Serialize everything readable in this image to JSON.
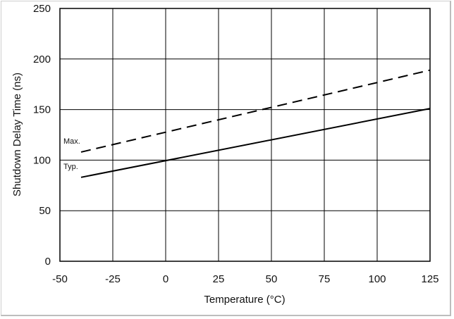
{
  "chart_data": {
    "type": "line",
    "title": "",
    "xlabel": "Temperature (°C)",
    "ylabel": "Shutdown Delay Time (ns)",
    "xlim": [
      -50,
      125
    ],
    "ylim": [
      0,
      250
    ],
    "xticks": [
      -50,
      -25,
      0,
      25,
      50,
      75,
      100,
      125
    ],
    "yticks": [
      0,
      50,
      100,
      150,
      200,
      250
    ],
    "grid": true,
    "series": [
      {
        "name": "Max.",
        "style": "dashed",
        "color": "#000000",
        "x": [
          -40,
          125
        ],
        "y": [
          108,
          189
        ],
        "label": "Max."
      },
      {
        "name": "Typ.",
        "style": "solid",
        "color": "#000000",
        "x": [
          -40,
          125
        ],
        "y": [
          83,
          151
        ],
        "label": "Typ."
      }
    ]
  }
}
